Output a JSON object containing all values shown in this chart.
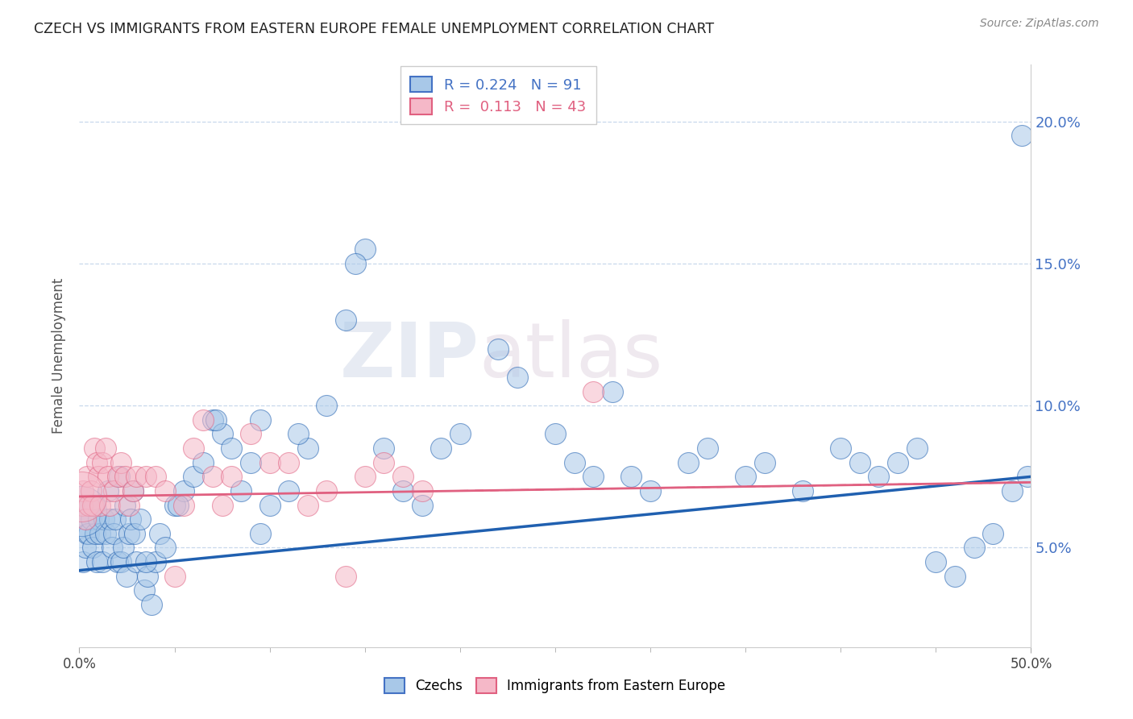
{
  "title": "CZECH VS IMMIGRANTS FROM EASTERN EUROPE FEMALE UNEMPLOYMENT CORRELATION CHART",
  "source_text": "Source: ZipAtlas.com",
  "ylabel": "Female Unemployment",
  "xlim": [
    0.0,
    50.0
  ],
  "ylim": [
    1.5,
    22.0
  ],
  "yticks": [
    5.0,
    10.0,
    15.0,
    20.0
  ],
  "xtick_show": [
    0.0,
    50.0
  ],
  "blue_label": "Czechs",
  "pink_label": "Immigrants from Eastern Europe",
  "blue_color": "#a8c8e8",
  "pink_color": "#f5b8c8",
  "blue_line_color": "#2060b0",
  "pink_line_color": "#e06080",
  "R_blue": 0.224,
  "N_blue": 91,
  "R_pink": 0.113,
  "N_pink": 43,
  "watermark_zip": "ZIP",
  "watermark_atlas": "atlas",
  "blue_x": [
    0.15,
    0.2,
    0.3,
    0.35,
    0.4,
    0.5,
    0.6,
    0.7,
    0.8,
    0.85,
    0.9,
    1.0,
    1.1,
    1.2,
    1.3,
    1.4,
    1.5,
    1.6,
    1.7,
    1.8,
    1.9,
    2.0,
    2.1,
    2.2,
    2.3,
    2.4,
    2.5,
    2.6,
    2.7,
    2.8,
    2.9,
    3.0,
    3.2,
    3.4,
    3.6,
    3.8,
    4.0,
    4.2,
    4.5,
    5.0,
    5.5,
    6.0,
    6.5,
    7.0,
    7.5,
    8.0,
    8.5,
    9.0,
    9.5,
    10.0,
    11.0,
    12.0,
    13.0,
    14.0,
    15.0,
    16.0,
    17.0,
    18.0,
    20.0,
    22.0,
    25.0,
    27.0,
    28.0,
    30.0,
    32.0,
    35.0,
    38.0,
    40.0,
    42.0,
    43.0,
    45.0,
    46.0,
    47.0,
    48.0,
    49.0,
    49.5,
    3.5,
    5.2,
    7.2,
    9.5,
    11.5,
    14.5,
    19.0,
    23.0,
    26.0,
    29.0,
    33.0,
    36.0,
    41.0,
    44.0,
    49.8
  ],
  "blue_y": [
    6.5,
    4.5,
    5.0,
    6.0,
    5.5,
    5.5,
    6.0,
    5.0,
    6.5,
    5.5,
    4.5,
    6.0,
    5.5,
    4.5,
    6.0,
    5.5,
    7.0,
    6.0,
    5.0,
    5.5,
    6.0,
    4.5,
    7.5,
    4.5,
    5.0,
    6.5,
    4.0,
    5.5,
    6.0,
    7.0,
    5.5,
    4.5,
    6.0,
    3.5,
    4.0,
    3.0,
    4.5,
    5.5,
    5.0,
    6.5,
    7.0,
    7.5,
    8.0,
    9.5,
    9.0,
    8.5,
    7.0,
    8.0,
    5.5,
    6.5,
    7.0,
    8.5,
    10.0,
    13.0,
    15.5,
    8.5,
    7.0,
    6.5,
    9.0,
    12.0,
    9.0,
    7.5,
    10.5,
    7.0,
    8.0,
    7.5,
    7.0,
    8.5,
    7.5,
    8.0,
    4.5,
    4.0,
    5.0,
    5.5,
    7.0,
    19.5,
    4.5,
    6.5,
    9.5,
    9.5,
    9.0,
    15.0,
    8.5,
    11.0,
    8.0,
    7.5,
    8.5,
    8.0,
    8.0,
    8.5,
    7.5
  ],
  "blue_size": [
    80,
    80,
    80,
    80,
    80,
    80,
    80,
    80,
    80,
    80,
    80,
    80,
    80,
    80,
    80,
    80,
    80,
    80,
    80,
    80,
    80,
    80,
    80,
    80,
    80,
    80,
    80,
    80,
    80,
    80,
    80,
    80,
    80,
    80,
    80,
    80,
    80,
    80,
    80,
    80,
    80,
    80,
    80,
    80,
    80,
    80,
    80,
    80,
    80,
    80,
    80,
    80,
    80,
    80,
    80,
    80,
    80,
    80,
    80,
    80,
    80,
    80,
    80,
    80,
    80,
    80,
    80,
    80,
    80,
    80,
    80,
    80,
    80,
    80,
    80,
    80,
    80,
    80,
    80,
    80,
    80,
    80,
    80,
    80,
    80,
    80,
    80,
    80,
    80,
    80,
    80
  ],
  "pink_x": [
    0.15,
    0.2,
    0.3,
    0.4,
    0.5,
    0.6,
    0.7,
    0.8,
    0.9,
    1.0,
    1.1,
    1.2,
    1.4,
    1.5,
    1.6,
    1.8,
    2.0,
    2.2,
    2.4,
    2.6,
    2.8,
    3.0,
    3.5,
    4.0,
    4.5,
    5.0,
    5.5,
    6.0,
    6.5,
    7.0,
    7.5,
    8.0,
    9.0,
    10.0,
    11.0,
    12.0,
    13.0,
    14.0,
    15.0,
    16.0,
    17.0,
    18.0,
    27.0
  ],
  "pink_y": [
    6.5,
    7.0,
    6.0,
    7.5,
    6.5,
    7.0,
    6.5,
    8.5,
    8.0,
    7.5,
    6.5,
    8.0,
    8.5,
    7.5,
    6.5,
    7.0,
    7.5,
    8.0,
    7.5,
    6.5,
    7.0,
    7.5,
    7.5,
    7.5,
    7.0,
    4.0,
    6.5,
    8.5,
    9.5,
    7.5,
    6.5,
    7.5,
    9.0,
    8.0,
    8.0,
    6.5,
    7.0,
    4.0,
    7.5,
    8.0,
    7.5,
    7.0,
    10.5
  ],
  "trend_blue_x0": 0.0,
  "trend_blue_y0": 4.2,
  "trend_blue_x1": 50.0,
  "trend_blue_y1": 7.5,
  "trend_pink_x0": 0.0,
  "trend_pink_y0": 6.8,
  "trend_pink_x1": 50.0,
  "trend_pink_y1": 7.3,
  "grid_color": "#c8d8ec",
  "background_color": "#ffffff"
}
